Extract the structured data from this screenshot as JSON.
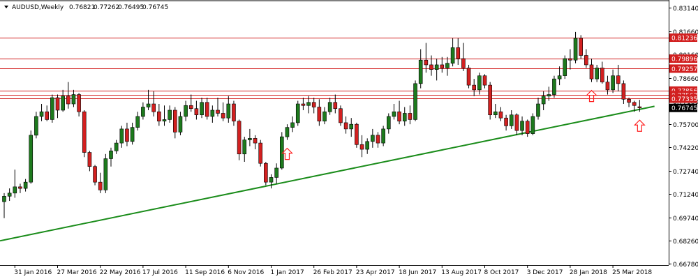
{
  "header": {
    "symbol": "AUDUSD,Weekly",
    "open": "0.76821",
    "high": "0.77262",
    "low": "0.76495",
    "close": "0.76745"
  },
  "colors": {
    "background": "#ffffff",
    "bull": "#1d7a1d",
    "bear": "#d32020",
    "resistance": "#d22020",
    "trendline": "#1a8c1a",
    "current_label_bg": "#000000",
    "arrow": "#ff2020"
  },
  "chart_data": {
    "type": "candlestick",
    "title": "AUDUSD,Weekly",
    "ylim": [
      0.667,
      0.836
    ],
    "y_ticks": [
      "0.83140",
      "0.81660",
      "0.80160",
      "0.78660",
      "0.77180",
      "0.75700",
      "0.74220",
      "0.72740",
      "0.71240",
      "0.69740",
      "0.68260",
      "0.66780"
    ],
    "x_ticks": [
      "31 Jan 2016",
      "27 Mar 2016",
      "22 May 2016",
      "17 Jul 2016",
      "11 Sep 2016",
      "6 Nov 2016",
      "1 Jan 2017",
      "26 Feb 2017",
      "23 Apr 2017",
      "18 Jun 2017",
      "13 Aug 2017",
      "8 Oct 2017",
      "3 Dec 2017",
      "28 Jan 2018",
      "25 Mar 2018"
    ],
    "x_tick_index": [
      2,
      10,
      18,
      26,
      34,
      42,
      50,
      58,
      66,
      74,
      82,
      90,
      98,
      106,
      114
    ],
    "current_price": "0.76745",
    "resistance_levels": [
      {
        "label": "0.81236",
        "value": 0.81236
      },
      {
        "label": "0.79896",
        "value": 0.79896
      },
      {
        "label": "0.79257",
        "value": 0.79257
      },
      {
        "label": "0.77856",
        "value": 0.77856
      },
      {
        "label": "0.77567",
        "value": 0.77567
      },
      {
        "label": "0.77335",
        "value": 0.77335
      }
    ],
    "trendline": {
      "start": [
        0,
        0.6825
      ],
      "end": [
        121,
        0.7685
      ]
    },
    "arrow_index": [
      53,
      110,
      129
    ],
    "ohlc": [
      [
        0.7075,
        0.713,
        0.697,
        0.711
      ],
      [
        0.711,
        0.716,
        0.708,
        0.713
      ],
      [
        0.713,
        0.728,
        0.71,
        0.717
      ],
      [
        0.717,
        0.719,
        0.713,
        0.716
      ],
      [
        0.716,
        0.722,
        0.714,
        0.72
      ],
      [
        0.72,
        0.753,
        0.719,
        0.75
      ],
      [
        0.75,
        0.765,
        0.748,
        0.762
      ],
      [
        0.762,
        0.77,
        0.759,
        0.765
      ],
      [
        0.765,
        0.769,
        0.759,
        0.76
      ],
      [
        0.76,
        0.776,
        0.758,
        0.774
      ],
      [
        0.774,
        0.776,
        0.761,
        0.766
      ],
      [
        0.766,
        0.779,
        0.765,
        0.775
      ],
      [
        0.775,
        0.784,
        0.767,
        0.77
      ],
      [
        0.77,
        0.779,
        0.768,
        0.776
      ],
      [
        0.776,
        0.777,
        0.762,
        0.765
      ],
      [
        0.765,
        0.766,
        0.736,
        0.739
      ],
      [
        0.739,
        0.74,
        0.727,
        0.73
      ],
      [
        0.73,
        0.731,
        0.718,
        0.72
      ],
      [
        0.72,
        0.726,
        0.713,
        0.715
      ],
      [
        0.715,
        0.738,
        0.713,
        0.735
      ],
      [
        0.735,
        0.742,
        0.73,
        0.74
      ],
      [
        0.74,
        0.747,
        0.738,
        0.745
      ],
      [
        0.745,
        0.756,
        0.742,
        0.754
      ],
      [
        0.754,
        0.758,
        0.743,
        0.746
      ],
      [
        0.746,
        0.758,
        0.744,
        0.755
      ],
      [
        0.755,
        0.765,
        0.753,
        0.762
      ],
      [
        0.762,
        0.771,
        0.76,
        0.768
      ],
      [
        0.768,
        0.779,
        0.766,
        0.77
      ],
      [
        0.77,
        0.778,
        0.762,
        0.765
      ],
      [
        0.765,
        0.77,
        0.756,
        0.759
      ],
      [
        0.759,
        0.769,
        0.756,
        0.76
      ],
      [
        0.76,
        0.769,
        0.758,
        0.766
      ],
      [
        0.766,
        0.768,
        0.748,
        0.752
      ],
      [
        0.752,
        0.765,
        0.75,
        0.762
      ],
      [
        0.762,
        0.772,
        0.759,
        0.769
      ],
      [
        0.769,
        0.776,
        0.765,
        0.767
      ],
      [
        0.767,
        0.772,
        0.76,
        0.763
      ],
      [
        0.763,
        0.774,
        0.761,
        0.771
      ],
      [
        0.771,
        0.774,
        0.76,
        0.762
      ],
      [
        0.762,
        0.769,
        0.758,
        0.766
      ],
      [
        0.766,
        0.774,
        0.762,
        0.764
      ],
      [
        0.764,
        0.771,
        0.759,
        0.761
      ],
      [
        0.761,
        0.775,
        0.758,
        0.77
      ],
      [
        0.77,
        0.772,
        0.756,
        0.759
      ],
      [
        0.759,
        0.76,
        0.734,
        0.738
      ],
      [
        0.738,
        0.749,
        0.733,
        0.747
      ],
      [
        0.747,
        0.754,
        0.743,
        0.748
      ],
      [
        0.748,
        0.75,
        0.741,
        0.745
      ],
      [
        0.745,
        0.747,
        0.73,
        0.732
      ],
      [
        0.732,
        0.733,
        0.718,
        0.72
      ],
      [
        0.72,
        0.725,
        0.716,
        0.723
      ],
      [
        0.723,
        0.732,
        0.719,
        0.729
      ],
      [
        0.729,
        0.752,
        0.728,
        0.749
      ],
      [
        0.749,
        0.757,
        0.747,
        0.755
      ],
      [
        0.755,
        0.762,
        0.752,
        0.758
      ],
      [
        0.758,
        0.772,
        0.756,
        0.77
      ],
      [
        0.77,
        0.774,
        0.766,
        0.769
      ],
      [
        0.769,
        0.775,
        0.764,
        0.771
      ],
      [
        0.771,
        0.774,
        0.764,
        0.768
      ],
      [
        0.768,
        0.773,
        0.756,
        0.759
      ],
      [
        0.759,
        0.768,
        0.757,
        0.765
      ],
      [
        0.765,
        0.774,
        0.763,
        0.771
      ],
      [
        0.771,
        0.776,
        0.764,
        0.767
      ],
      [
        0.767,
        0.769,
        0.756,
        0.758
      ],
      [
        0.758,
        0.762,
        0.751,
        0.754
      ],
      [
        0.754,
        0.761,
        0.749,
        0.757
      ],
      [
        0.757,
        0.758,
        0.742,
        0.744
      ],
      [
        0.744,
        0.75,
        0.736,
        0.741
      ],
      [
        0.741,
        0.748,
        0.738,
        0.746
      ],
      [
        0.746,
        0.754,
        0.742,
        0.75
      ],
      [
        0.75,
        0.752,
        0.742,
        0.745
      ],
      [
        0.745,
        0.756,
        0.743,
        0.754
      ],
      [
        0.754,
        0.764,
        0.751,
        0.762
      ],
      [
        0.762,
        0.77,
        0.76,
        0.765
      ],
      [
        0.765,
        0.772,
        0.757,
        0.759
      ],
      [
        0.759,
        0.768,
        0.756,
        0.764
      ],
      [
        0.764,
        0.769,
        0.757,
        0.76
      ],
      [
        0.76,
        0.785,
        0.759,
        0.783
      ],
      [
        0.783,
        0.805,
        0.78,
        0.798
      ],
      [
        0.798,
        0.809,
        0.79,
        0.795
      ],
      [
        0.795,
        0.801,
        0.788,
        0.792
      ],
      [
        0.792,
        0.799,
        0.785,
        0.795
      ],
      [
        0.795,
        0.8,
        0.79,
        0.793
      ],
      [
        0.793,
        0.8,
        0.788,
        0.796
      ],
      [
        0.796,
        0.812,
        0.794,
        0.806
      ],
      [
        0.806,
        0.812,
        0.795,
        0.799
      ],
      [
        0.799,
        0.809,
        0.791,
        0.793
      ],
      [
        0.793,
        0.795,
        0.78,
        0.782
      ],
      [
        0.782,
        0.786,
        0.775,
        0.779
      ],
      [
        0.779,
        0.79,
        0.776,
        0.788
      ],
      [
        0.788,
        0.789,
        0.78,
        0.782
      ],
      [
        0.782,
        0.784,
        0.76,
        0.763
      ],
      [
        0.763,
        0.77,
        0.761,
        0.765
      ],
      [
        0.765,
        0.768,
        0.759,
        0.761
      ],
      [
        0.761,
        0.763,
        0.753,
        0.756
      ],
      [
        0.756,
        0.766,
        0.754,
        0.763
      ],
      [
        0.763,
        0.764,
        0.75,
        0.753
      ],
      [
        0.753,
        0.762,
        0.75,
        0.759
      ],
      [
        0.759,
        0.76,
        0.749,
        0.751
      ],
      [
        0.751,
        0.764,
        0.75,
        0.762
      ],
      [
        0.762,
        0.774,
        0.76,
        0.77
      ],
      [
        0.77,
        0.778,
        0.766,
        0.775
      ],
      [
        0.775,
        0.781,
        0.772,
        0.776
      ],
      [
        0.776,
        0.788,
        0.774,
        0.786
      ],
      [
        0.786,
        0.794,
        0.782,
        0.788
      ],
      [
        0.788,
        0.801,
        0.786,
        0.799
      ],
      [
        0.799,
        0.805,
        0.792,
        0.798
      ],
      [
        0.798,
        0.816,
        0.796,
        0.812
      ],
      [
        0.812,
        0.814,
        0.799,
        0.801
      ],
      [
        0.801,
        0.805,
        0.793,
        0.795
      ],
      [
        0.795,
        0.799,
        0.784,
        0.786
      ],
      [
        0.786,
        0.795,
        0.784,
        0.793
      ],
      [
        0.793,
        0.797,
        0.783,
        0.784
      ],
      [
        0.784,
        0.788,
        0.776,
        0.779
      ],
      [
        0.779,
        0.792,
        0.777,
        0.788
      ],
      [
        0.788,
        0.795,
        0.778,
        0.783
      ],
      [
        0.783,
        0.785,
        0.77,
        0.773
      ],
      [
        0.773,
        0.774,
        0.768,
        0.771
      ],
      [
        0.771,
        0.772,
        0.765,
        0.769
      ],
      [
        0.7682,
        0.7726,
        0.765,
        0.7675
      ]
    ]
  }
}
